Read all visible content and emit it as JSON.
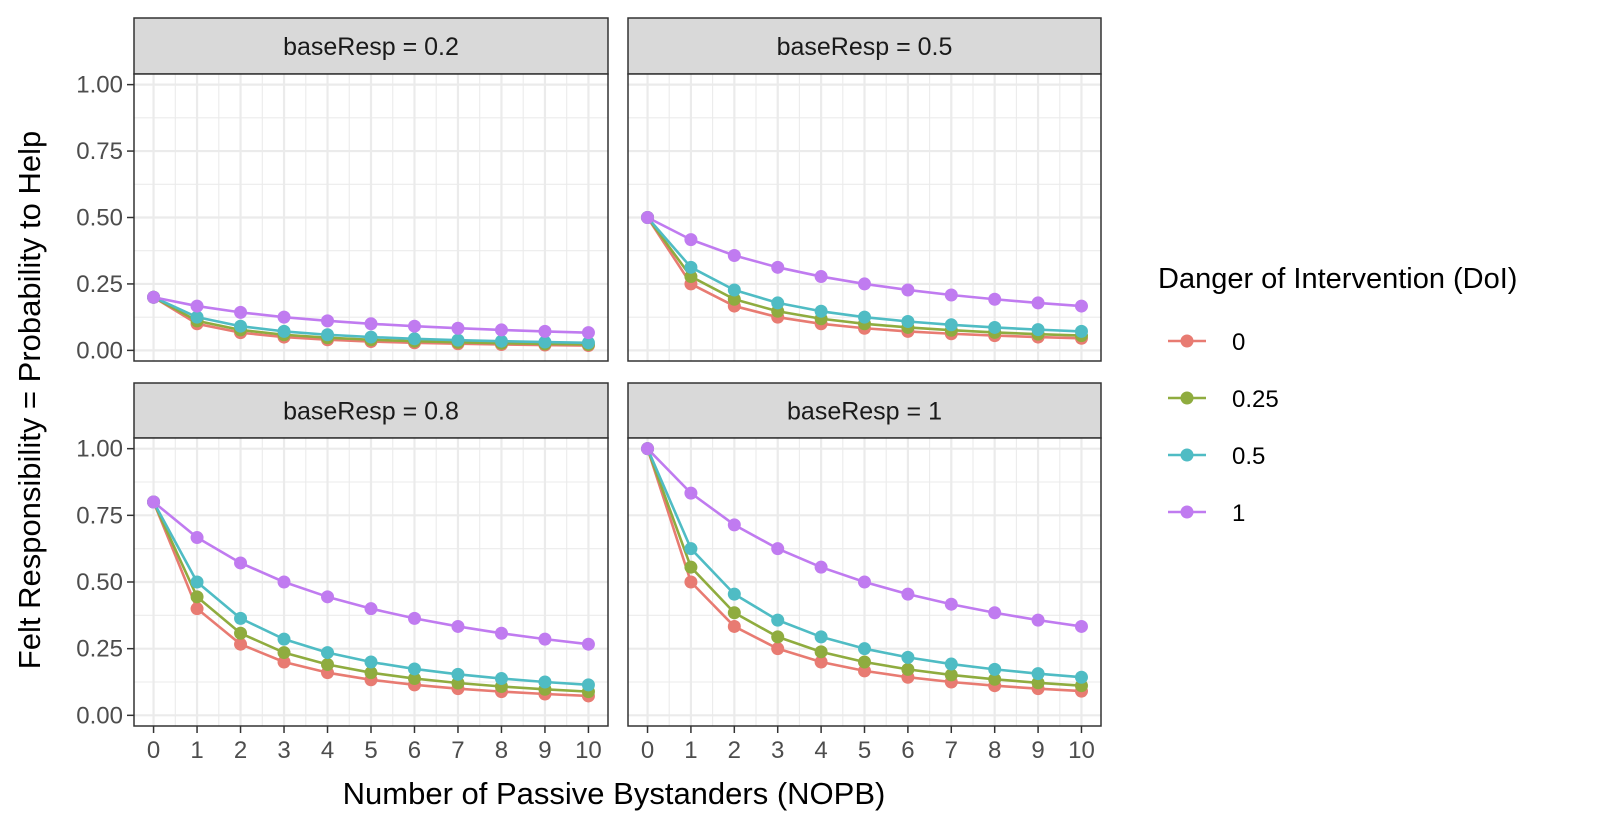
{
  "chart_data": {
    "type": "line",
    "xlabel": "Number of Passive Bystanders (NOPB)",
    "ylabel": "Felt Responsibility = Probability to Help",
    "x": [
      0,
      1,
      2,
      3,
      4,
      5,
      6,
      7,
      8,
      9,
      10
    ],
    "x_ticks": [
      "0",
      "1",
      "2",
      "3",
      "4",
      "5",
      "6",
      "7",
      "8",
      "9",
      "10"
    ],
    "y_ticks": [
      "0.00",
      "0.25",
      "0.50",
      "0.75",
      "1.00"
    ],
    "y_tick_values": [
      0,
      0.25,
      0.5,
      0.75,
      1.0
    ],
    "xlim": [
      -0.45,
      10.45
    ],
    "ylim": [
      -0.04,
      1.04
    ],
    "grid": true,
    "legend": {
      "title": "Danger of Intervention (DoI)",
      "position": "right",
      "labels": [
        "0",
        "0.25",
        "0.5",
        "1"
      ]
    },
    "series_colors": [
      "#e87b72",
      "#8fac3f",
      "#4fbcc4",
      "#c07bf0"
    ],
    "panels": [
      {
        "strip": "baseResp = 0.2",
        "series": [
          {
            "name": "0",
            "values": [
              0.2,
              0.1,
              0.0667,
              0.05,
              0.04,
              0.0333,
              0.0286,
              0.025,
              0.0222,
              0.02,
              0.0182
            ]
          },
          {
            "name": "0.25",
            "values": [
              0.2,
              0.1111,
              0.0769,
              0.0588,
              0.0476,
              0.04,
              0.0345,
              0.0303,
              0.027,
              0.0244,
              0.0222
            ]
          },
          {
            "name": "0.5",
            "values": [
              0.2,
              0.125,
              0.0909,
              0.0714,
              0.0588,
              0.05,
              0.0435,
              0.0385,
              0.0345,
              0.0313,
              0.0286
            ]
          },
          {
            "name": "1",
            "values": [
              0.2,
              0.1667,
              0.1429,
              0.125,
              0.1111,
              0.1,
              0.0909,
              0.0833,
              0.0769,
              0.0714,
              0.0667
            ]
          }
        ]
      },
      {
        "strip": "baseResp = 0.5",
        "series": [
          {
            "name": "0",
            "values": [
              0.5,
              0.25,
              0.1667,
              0.125,
              0.1,
              0.0833,
              0.0714,
              0.0625,
              0.0556,
              0.05,
              0.0455
            ]
          },
          {
            "name": "0.25",
            "values": [
              0.5,
              0.2778,
              0.1923,
              0.1471,
              0.119,
              0.1,
              0.0862,
              0.0758,
              0.0676,
              0.061,
              0.0556
            ]
          },
          {
            "name": "0.5",
            "values": [
              0.5,
              0.3125,
              0.2273,
              0.1786,
              0.1471,
              0.125,
              0.1087,
              0.0962,
              0.0862,
              0.0781,
              0.0714
            ]
          },
          {
            "name": "1",
            "values": [
              0.5,
              0.4167,
              0.3571,
              0.3125,
              0.2778,
              0.25,
              0.2273,
              0.2083,
              0.1923,
              0.1786,
              0.1667
            ]
          }
        ]
      },
      {
        "strip": "baseResp = 0.8",
        "series": [
          {
            "name": "0",
            "values": [
              0.8,
              0.4,
              0.2667,
              0.2,
              0.16,
              0.1333,
              0.1143,
              0.1,
              0.0889,
              0.08,
              0.0727
            ]
          },
          {
            "name": "0.25",
            "values": [
              0.8,
              0.4444,
              0.3077,
              0.2353,
              0.1905,
              0.16,
              0.1379,
              0.1212,
              0.1081,
              0.0976,
              0.0889
            ]
          },
          {
            "name": "0.5",
            "values": [
              0.8,
              0.5,
              0.3636,
              0.2857,
              0.2353,
              0.2,
              0.1739,
              0.1538,
              0.1379,
              0.125,
              0.1143
            ]
          },
          {
            "name": "1",
            "values": [
              0.8,
              0.6667,
              0.5714,
              0.5,
              0.4444,
              0.4,
              0.3636,
              0.3333,
              0.3077,
              0.2857,
              0.2667
            ]
          }
        ]
      },
      {
        "strip": "baseResp = 1",
        "series": [
          {
            "name": "0",
            "values": [
              1.0,
              0.5,
              0.3333,
              0.25,
              0.2,
              0.1667,
              0.1429,
              0.125,
              0.1111,
              0.1,
              0.0909
            ]
          },
          {
            "name": "0.25",
            "values": [
              1.0,
              0.5556,
              0.3846,
              0.2941,
              0.2381,
              0.2,
              0.1724,
              0.1515,
              0.1351,
              0.122,
              0.1111
            ]
          },
          {
            "name": "0.5",
            "values": [
              1.0,
              0.625,
              0.4545,
              0.3571,
              0.2941,
              0.25,
              0.2174,
              0.1923,
              0.1724,
              0.1563,
              0.1429
            ]
          },
          {
            "name": "1",
            "values": [
              1.0,
              0.8333,
              0.7143,
              0.625,
              0.5556,
              0.5,
              0.4545,
              0.4167,
              0.3846,
              0.3571,
              0.3333
            ]
          }
        ]
      }
    ]
  }
}
